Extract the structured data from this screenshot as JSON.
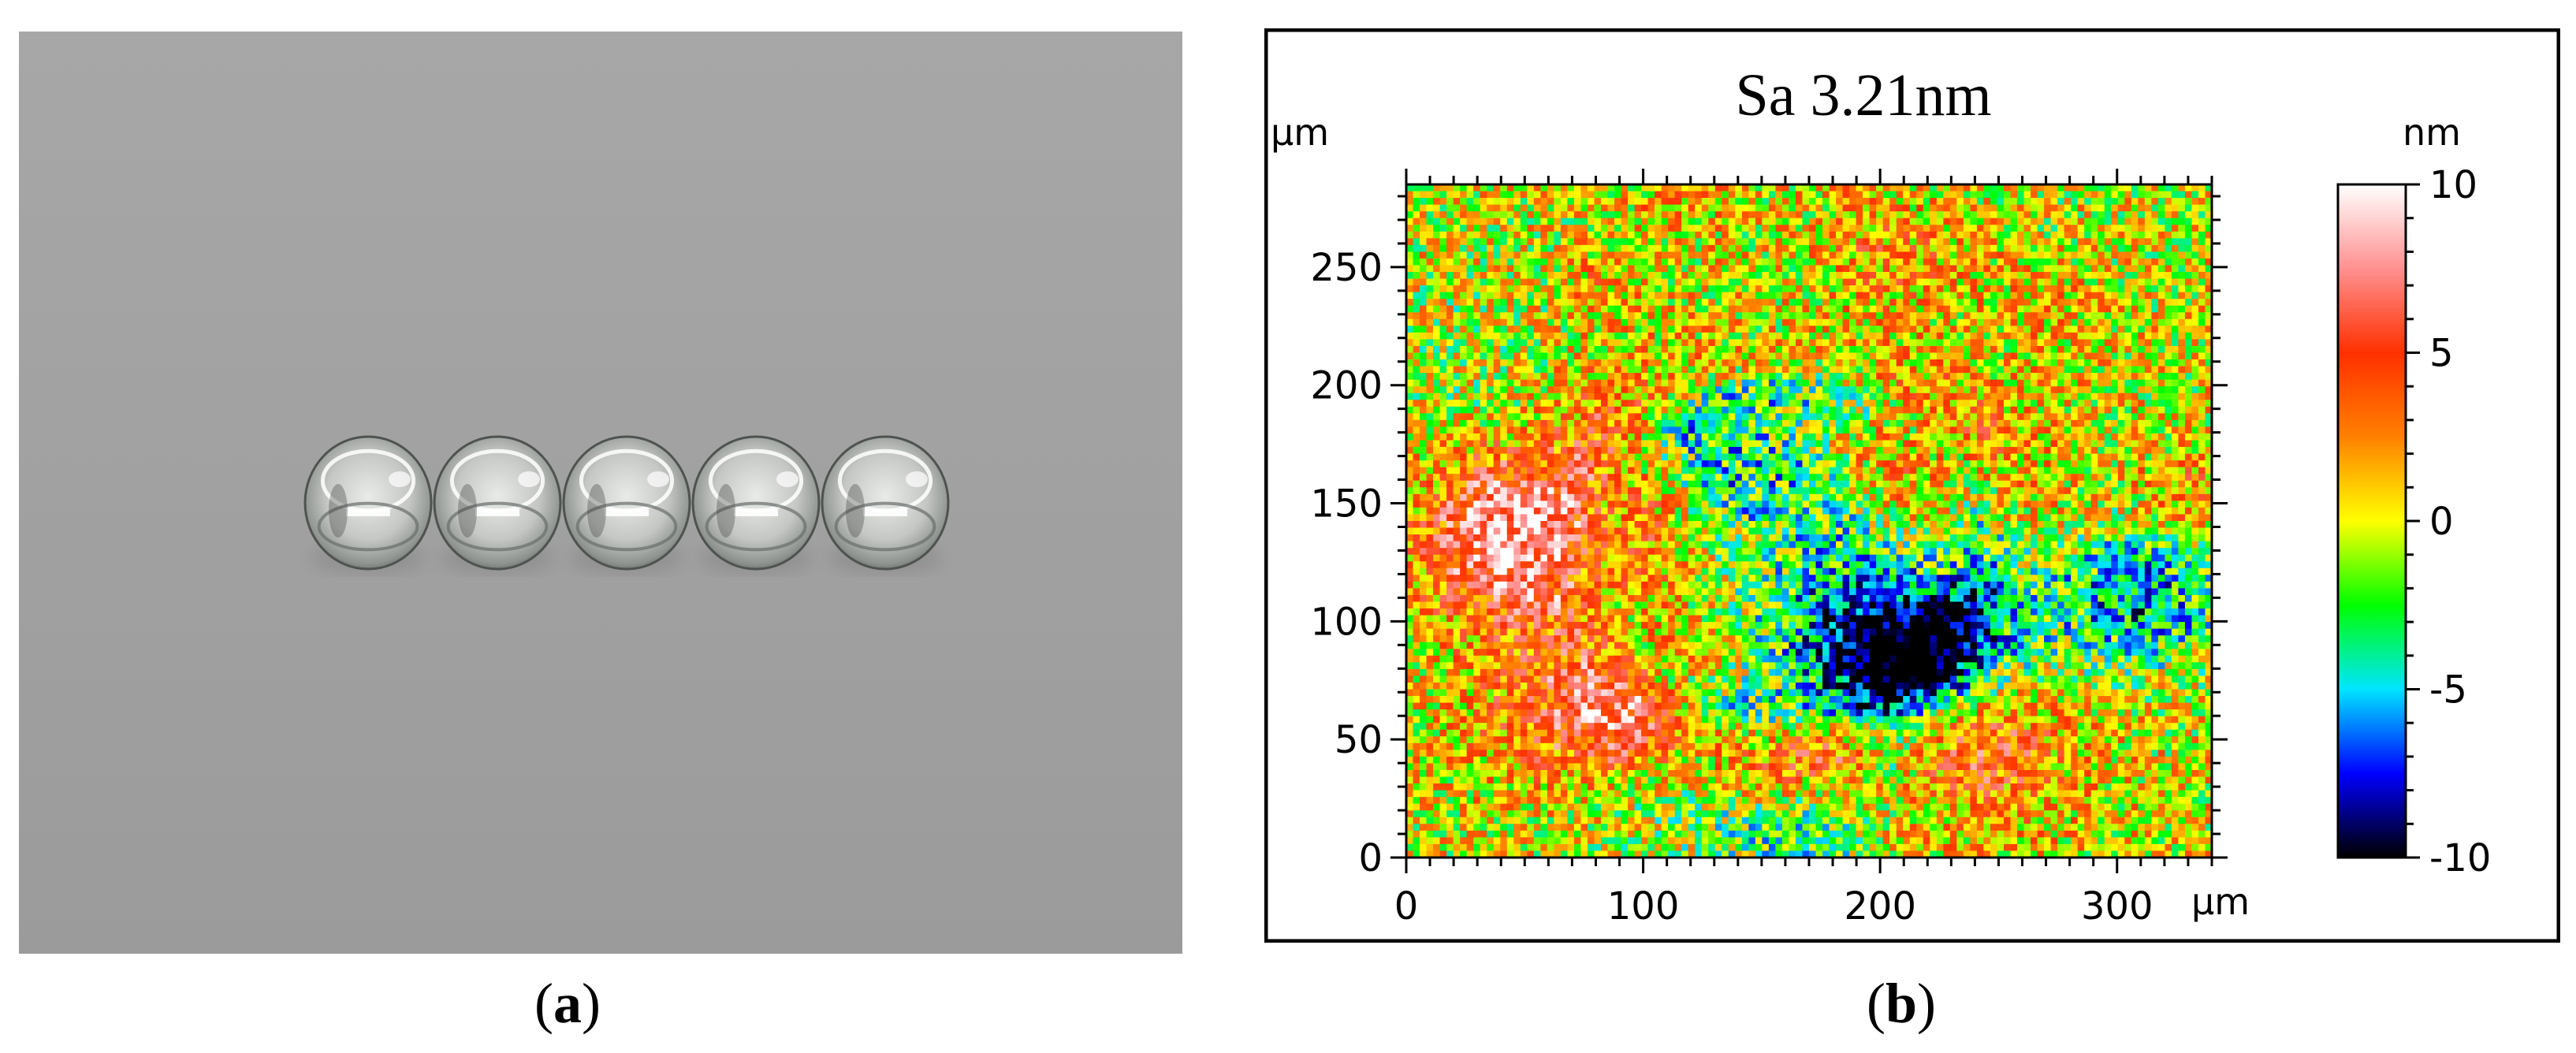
{
  "figure": {
    "panel_a_label": "a",
    "panel_b_label": "b"
  },
  "photo": {
    "description_icon": "lens-photo",
    "lens_count": 5
  },
  "chart_data": {
    "type": "heatmap",
    "title": "Sa 3.21nm",
    "x_unit": "µm",
    "y_unit": "µm",
    "xlim": [
      0,
      340
    ],
    "ylim": [
      0,
      285
    ],
    "x_ticks": [
      0,
      100,
      200,
      300
    ],
    "x_tick_labels": [
      "0",
      "100",
      "200",
      "300"
    ],
    "y_ticks": [
      0,
      50,
      100,
      150,
      200,
      250
    ],
    "y_tick_labels": [
      "0",
      "50",
      "100",
      "150",
      "200",
      "250"
    ],
    "colorbar": {
      "unit": "nm",
      "range": [
        -10,
        10
      ],
      "ticks": [
        10,
        5,
        0,
        -5,
        -10
      ],
      "tick_labels": [
        "10",
        "5",
        "0",
        "-5",
        "-10"
      ],
      "colors": [
        "#000000",
        "#0000ff",
        "#00e5ff",
        "#00ff00",
        "#ffff00",
        "#ff8000",
        "#ff3000",
        "#ff9090",
        "#ffffff"
      ]
    }
  }
}
